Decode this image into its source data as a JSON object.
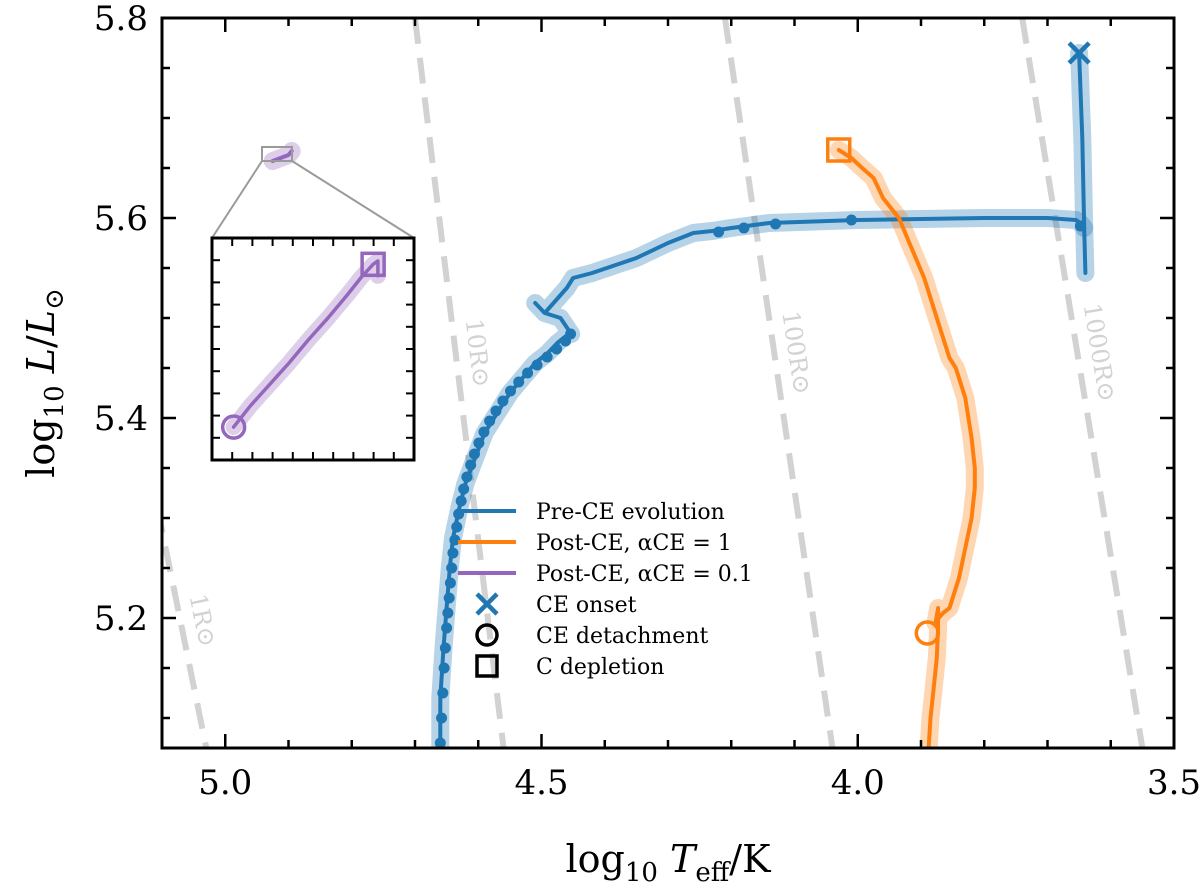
{
  "chart_data": {
    "type": "line",
    "title": "",
    "xlabel": "log10 Teff/K",
    "ylabel": "log10 L/L⊙",
    "xlim": [
      5.1,
      3.5
    ],
    "ylim": [
      5.07,
      5.8
    ],
    "x_ticks": [
      {
        "value": 5.0,
        "label": "5.0"
      },
      {
        "value": 4.5,
        "label": "4.5"
      },
      {
        "value": 4.0,
        "label": "4.0"
      },
      {
        "value": 3.5,
        "label": "3.5"
      }
    ],
    "y_ticks": [
      {
        "value": 5.2,
        "label": "5.2"
      },
      {
        "value": 5.4,
        "label": "5.4"
      },
      {
        "value": 5.6,
        "label": "5.6"
      },
      {
        "value": 5.8,
        "label": "5.8"
      }
    ],
    "grid": false,
    "legend_position": "lower-center",
    "colors": {
      "pre_ce": "#1f77b4",
      "post_ce_alpha1": "#ff7f0e",
      "post_ce_alpha01": "#9467bd",
      "radius_lines": "#d2d2d2"
    },
    "series": [
      {
        "name": "Pre-CE evolution",
        "color": "#1f77b4",
        "x": [
          4.66,
          4.66,
          4.655,
          4.65,
          4.645,
          4.64,
          4.63,
          4.62,
          4.605,
          4.59,
          4.57,
          4.55,
          4.53,
          4.51,
          4.49,
          4.475,
          4.465,
          4.455,
          4.453,
          4.47,
          4.495,
          4.51,
          4.495,
          4.46,
          4.45,
          4.42,
          4.35,
          4.3,
          4.26,
          4.23,
          4.2,
          4.14,
          4.0,
          3.8,
          3.7,
          3.655,
          3.648,
          3.642,
          3.64
        ],
        "y": [
          5.07,
          5.12,
          5.17,
          5.21,
          5.25,
          5.28,
          5.31,
          5.335,
          5.36,
          5.385,
          5.405,
          5.425,
          5.44,
          5.455,
          5.465,
          5.475,
          5.48,
          5.485,
          5.484,
          5.5,
          5.505,
          5.515,
          5.505,
          5.53,
          5.54,
          5.545,
          5.56,
          5.575,
          5.585,
          5.587,
          5.59,
          5.595,
          5.598,
          5.6,
          5.6,
          5.598,
          5.595,
          5.59,
          5.545
        ]
      },
      {
        "name": "Pre-CE evolution (to CE onset)",
        "color": "#1f77b4",
        "x": [
          3.642,
          3.645,
          3.65
        ],
        "y": [
          5.59,
          5.68,
          5.765
        ]
      },
      {
        "name": "Post-CE, αCE = 1",
        "color": "#ff7f0e",
        "x": [
          3.888,
          3.885,
          3.88,
          3.875,
          3.873,
          3.873,
          3.877,
          3.872,
          3.865,
          3.855,
          3.84,
          3.82,
          3.815,
          3.815,
          3.82,
          3.83,
          3.845,
          3.855,
          3.86,
          3.875,
          3.895,
          3.915,
          3.935,
          3.96,
          3.975,
          3.993,
          4.01,
          4.03
        ],
        "y": [
          5.07,
          5.1,
          5.13,
          5.16,
          5.19,
          5.21,
          5.195,
          5.2,
          5.205,
          5.21,
          5.24,
          5.3,
          5.33,
          5.35,
          5.38,
          5.42,
          5.45,
          5.46,
          5.47,
          5.5,
          5.54,
          5.57,
          5.6,
          5.62,
          5.64,
          5.65,
          5.66,
          5.668
        ]
      },
      {
        "name": "Post-CE, αCE = 0.1",
        "color": "#9467bd",
        "x": [
          4.925,
          4.9,
          4.895
        ],
        "y": [
          5.657,
          5.663,
          5.667
        ]
      }
    ],
    "markers": [
      {
        "label": "CE onset",
        "symbol": "x",
        "color": "#1f77b4",
        "x": 3.65,
        "y": 5.765
      },
      {
        "label": "CE detachment",
        "symbol": "o",
        "color": "#ff7f0e",
        "x": 3.89,
        "y": 5.185
      },
      {
        "label": "C depletion",
        "symbol": "s",
        "color": "#ff7f0e",
        "x": 4.03,
        "y": 5.668
      }
    ],
    "pre_ce_dots": {
      "x": [
        4.66,
        4.658,
        4.656,
        4.654,
        4.652,
        4.65,
        4.648,
        4.646,
        4.644,
        4.642,
        4.64,
        4.637,
        4.634,
        4.631,
        4.627,
        4.623,
        4.618,
        4.612,
        4.606,
        4.599,
        4.591,
        4.582,
        4.572,
        4.561,
        4.549,
        4.536,
        4.522,
        4.507,
        4.491,
        4.476,
        4.462,
        4.454,
        4.22,
        4.18,
        4.13,
        4.01,
        3.648
      ],
      "y": [
        5.075,
        5.1,
        5.125,
        5.15,
        5.17,
        5.19,
        5.205,
        5.22,
        5.235,
        5.25,
        5.265,
        5.278,
        5.291,
        5.304,
        5.317,
        5.329,
        5.341,
        5.353,
        5.364,
        5.375,
        5.386,
        5.397,
        5.407,
        5.417,
        5.427,
        5.436,
        5.445,
        5.453,
        5.461,
        5.469,
        5.477,
        5.484,
        5.586,
        5.59,
        5.594,
        5.598,
        5.592
      ]
    },
    "radius_lines": [
      {
        "label": "1R⊙",
        "x": [
          5.12,
          5.03
        ],
        "y": [
          5.35,
          5.07
        ]
      },
      {
        "label": "10R⊙",
        "x": [
          4.7,
          4.56
        ],
        "y": [
          5.8,
          5.07
        ]
      },
      {
        "label": "100R⊙",
        "x": [
          4.21,
          4.04
        ],
        "y": [
          5.8,
          5.07
        ]
      },
      {
        "label": "1000R⊙",
        "x": [
          3.74,
          3.55
        ],
        "y": [
          5.8,
          5.07
        ]
      }
    ],
    "inset": {
      "xlim": [
        4.935,
        4.893
      ],
      "ylim": [
        5.6555,
        5.669
      ],
      "series": [
        {
          "name": "Post-CE, αCE = 0.1 (zoom)",
          "color": "#9467bd",
          "x": [
            4.9305,
            4.927,
            4.923,
            4.919,
            4.915,
            4.911,
            4.907,
            4.904,
            4.9015,
            4.9005,
            4.9005
          ],
          "y": [
            5.6575,
            5.6588,
            5.6601,
            5.6614,
            5.6628,
            5.6641,
            5.6655,
            5.6666,
            5.6674,
            5.6676,
            5.6667
          ]
        }
      ],
      "markers": [
        {
          "label": "CE detachment",
          "symbol": "o",
          "color": "#9467bd",
          "x": 4.9305,
          "y": 5.6575
        },
        {
          "label": "C depletion",
          "symbol": "s",
          "color": "#9467bd",
          "x": 4.9015,
          "y": 5.6674
        }
      ]
    },
    "legend": [
      {
        "label": "Pre-CE evolution",
        "kind": "line",
        "color": "#1f77b4"
      },
      {
        "label": "Post-CE, αCE = 1",
        "kind": "line",
        "color": "#ff7f0e"
      },
      {
        "label": "Post-CE, αCE = 0.1",
        "kind": "line",
        "color": "#9467bd"
      },
      {
        "label": "CE onset",
        "kind": "x",
        "color": "#1f77b4"
      },
      {
        "label": "CE detachment",
        "kind": "o",
        "color": "#000000"
      },
      {
        "label": "C depletion",
        "kind": "s",
        "color": "#000000"
      }
    ]
  }
}
